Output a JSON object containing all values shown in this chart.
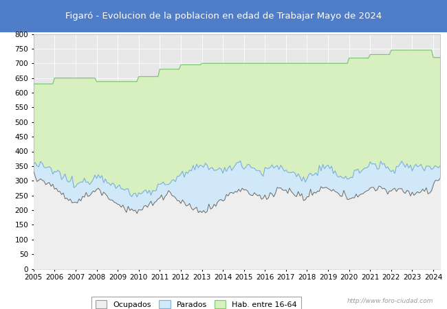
{
  "title": "Figaró - Evolucion de la poblacion en edad de Trabajar Mayo de 2024",
  "title_bg_color": "#4f7dc8",
  "title_text_color": "white",
  "ylim": [
    0,
    800
  ],
  "yticks": [
    0,
    50,
    100,
    150,
    200,
    250,
    300,
    350,
    400,
    450,
    500,
    550,
    600,
    650,
    700,
    750,
    800
  ],
  "legend_labels": [
    "Ocupados",
    "Parados",
    "Hab. entre 16-64"
  ],
  "ocupados_fill_color": "#eeeeee",
  "ocupados_line_color": "#666666",
  "parados_fill_color": "#d0e8f8",
  "parados_line_color": "#7ab0d8",
  "hab_fill_color": "#d8f0c0",
  "hab_line_color": "#7ac870",
  "watermark": "http://www.foro-ciudad.com",
  "plot_bg_color": "#e8e8e8",
  "grid_color": "#ffffff",
  "n_points": 233,
  "hab_values": [
    630,
    630,
    630,
    630,
    630,
    630,
    630,
    630,
    630,
    630,
    630,
    630,
    650,
    650,
    650,
    650,
    650,
    650,
    650,
    650,
    650,
    650,
    650,
    650,
    650,
    650,
    650,
    650,
    650,
    650,
    650,
    650,
    650,
    650,
    650,
    650,
    638,
    638,
    638,
    638,
    638,
    638,
    638,
    638,
    638,
    638,
    638,
    638,
    638,
    638,
    638,
    638,
    638,
    638,
    638,
    638,
    638,
    638,
    638,
    638,
    655,
    655,
    655,
    655,
    655,
    655,
    655,
    655,
    655,
    655,
    655,
    655,
    680,
    680,
    680,
    680,
    680,
    680,
    680,
    680,
    680,
    680,
    680,
    680,
    695,
    695,
    695,
    695,
    695,
    695,
    695,
    695,
    695,
    695,
    695,
    695,
    700,
    700,
    700,
    700,
    700,
    700,
    700,
    700,
    700,
    700,
    700,
    700,
    700,
    700,
    700,
    700,
    700,
    700,
    700,
    700,
    700,
    700,
    700,
    700,
    700,
    700,
    700,
    700,
    700,
    700,
    700,
    700,
    700,
    700,
    700,
    700,
    700,
    700,
    700,
    700,
    700,
    700,
    700,
    700,
    700,
    700,
    700,
    700,
    700,
    700,
    700,
    700,
    700,
    700,
    700,
    700,
    700,
    700,
    700,
    700,
    700,
    700,
    700,
    700,
    700,
    700,
    700,
    700,
    700,
    700,
    700,
    700,
    700,
    700,
    700,
    700,
    700,
    700,
    700,
    700,
    700,
    700,
    700,
    700,
    718,
    718,
    718,
    718,
    718,
    718,
    718,
    718,
    718,
    718,
    718,
    718,
    730,
    730,
    730,
    730,
    730,
    730,
    730,
    730,
    730,
    730,
    730,
    730,
    745,
    745,
    745,
    745,
    745,
    745,
    745,
    745,
    745,
    745,
    745,
    745,
    745,
    745,
    745,
    745,
    745,
    745,
    745,
    745,
    745,
    745,
    745,
    745,
    720,
    720,
    720,
    720,
    720
  ]
}
